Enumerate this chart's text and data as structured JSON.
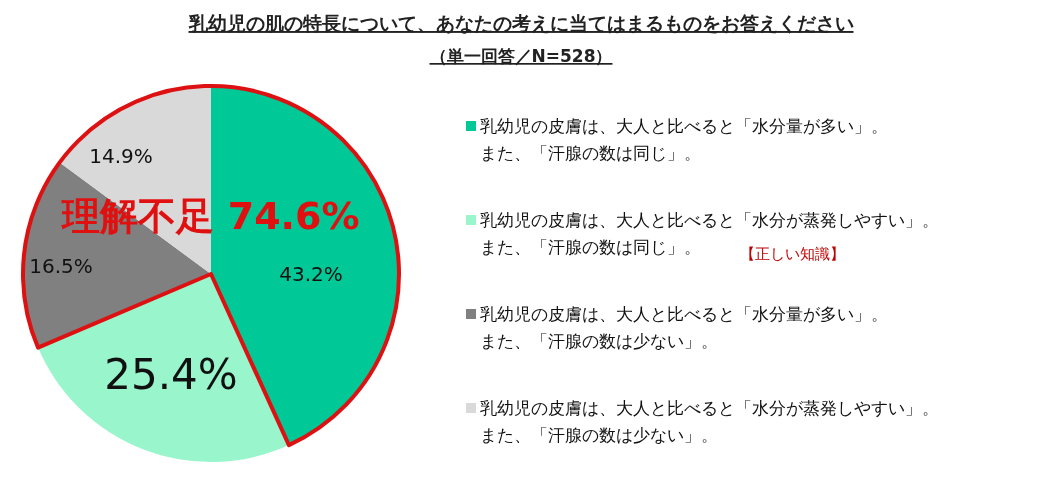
{
  "chart_data": {
    "type": "pie",
    "title": "乳幼児の肌の特長について、あなたの考えに当てはまるものをお答えください",
    "subtitle": "（単一回答／N=528）",
    "categories": [
      "乳幼児の皮膚は、大人と比べると「水分量が多い」。また、「汗腺の数は同じ」。",
      "乳幼児の皮膚は、大人と比べると「水分が蒸発しやすい」。また、「汗腺の数は同じ」。",
      "乳幼児の皮膚は、大人と比べると「水分量が多い」。また、「汗腺の数は少ない」。",
      "乳幼児の皮膚は、大人と比べると「水分が蒸発しやすい」。また、「汗腺の数は少ない」。"
    ],
    "values": [
      43.2,
      25.4,
      16.5,
      14.9
    ],
    "colors": [
      "#00c896",
      "#99f5cc",
      "#808080",
      "#d9d9d9"
    ],
    "value_labels": [
      "43.2%",
      "25.4%",
      "16.5%",
      "14.9%"
    ],
    "legend": "right",
    "annotations": [
      "理解不足 74.6%",
      "【正しい知識】"
    ]
  }
}
